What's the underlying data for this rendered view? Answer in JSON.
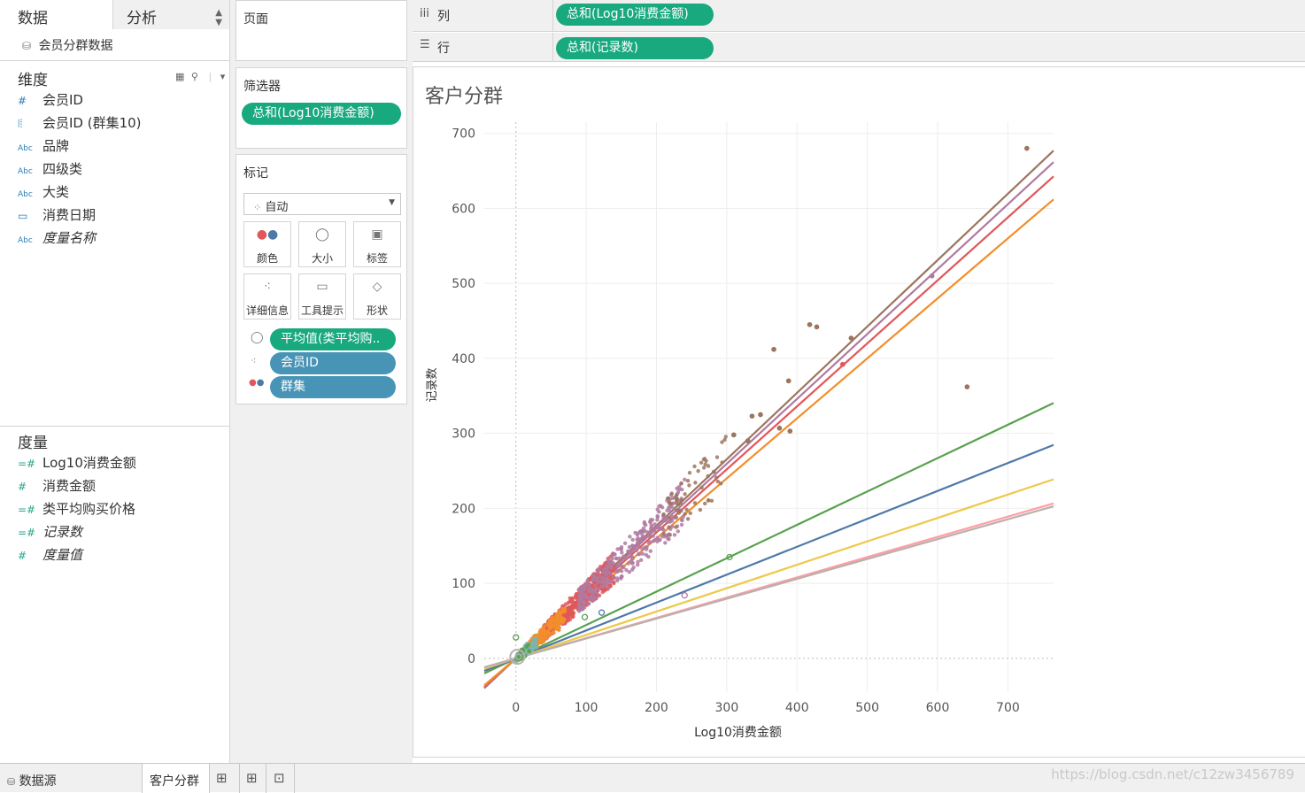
{
  "data_pane": {
    "tab_data": "数据",
    "tab_analytics": "分析",
    "datasource": "会员分群数据",
    "dimensions_title": "维度",
    "dimensions": [
      {
        "icon": "#",
        "label": "会员ID",
        "italic": false
      },
      {
        "icon": "⦚⦙",
        "label": "会员ID (群集10)",
        "italic": false
      },
      {
        "icon": "Abc",
        "label": "品牌",
        "italic": false
      },
      {
        "icon": "Abc",
        "label": "四级类",
        "italic": false
      },
      {
        "icon": "Abc",
        "label": "大类",
        "italic": false
      },
      {
        "icon": "▭",
        "label": "消费日期",
        "italic": false
      },
      {
        "icon": "Abc",
        "label": "度量名称",
        "italic": true
      }
    ],
    "measures_title": "度量",
    "measures": [
      {
        "icon": "=#",
        "label": "Log10消费金额",
        "italic": false
      },
      {
        "icon": "#",
        "label": "消费金额",
        "italic": false
      },
      {
        "icon": "=#",
        "label": "类平均购买价格",
        "italic": false
      },
      {
        "icon": "=#",
        "label": "记录数",
        "italic": true
      },
      {
        "icon": "#",
        "label": "度量值",
        "italic": true
      }
    ]
  },
  "shelves": {
    "pages_title": "页面",
    "filters_title": "筛选器",
    "filter_pill": "总和(Log10消费金额)",
    "columns_label": "列",
    "columns_pill": "总和(Log10消费金额)",
    "rows_label": "行",
    "rows_pill": "总和(记录数)"
  },
  "marks": {
    "title": "标记",
    "mark_type": "自动",
    "buttons": {
      "color": "颜色",
      "size": "大小",
      "label": "标签",
      "detail": "详细信息",
      "tooltip": "工具提示",
      "shape": "形状"
    },
    "pills": [
      {
        "label": "平均值(类平均购..",
        "kind": "size"
      },
      {
        "label": "会员ID",
        "kind": "detail"
      },
      {
        "label": "群集",
        "kind": "color"
      }
    ]
  },
  "sheet_title": "客户分群",
  "chart_data": {
    "type": "scatter",
    "title": "客户分群",
    "xlabel": "Log10消费金额",
    "ylabel": "记录数",
    "xlim": [
      -45,
      765
    ],
    "ylim": [
      -45,
      715
    ],
    "x_ticks": [
      0,
      100,
      200,
      300,
      400,
      500,
      600,
      700
    ],
    "y_ticks": [
      0,
      100,
      200,
      300,
      400,
      500,
      600,
      700
    ],
    "trend_lines": [
      {
        "color": "#9c755f",
        "slope": 0.885
      },
      {
        "color": "#b07aa1",
        "slope": 0.865
      },
      {
        "color": "#e15759",
        "slope": 0.84
      },
      {
        "color": "#f28e2b",
        "slope": 0.8
      },
      {
        "color": "#59a14f",
        "slope": 0.445
      },
      {
        "color": "#4e79a7",
        "slope": 0.372
      },
      {
        "color": "#edc948",
        "slope": 0.312
      },
      {
        "color": "#ff9da7",
        "slope": 0.27
      },
      {
        "color": "#bab0ac",
        "slope": 0.265
      }
    ],
    "clusters": [
      {
        "color": "#e15759",
        "x_range": [
          40,
          140
        ],
        "slope": 0.86,
        "count": 420
      },
      {
        "color": "#b07aa1",
        "x_range": [
          90,
          240
        ],
        "slope": 0.86,
        "count": 320
      },
      {
        "color": "#f28e2b",
        "x_range": [
          20,
          70
        ],
        "slope": 0.82,
        "count": 180
      },
      {
        "color": "#9c755f",
        "x_range": [
          210,
          300
        ],
        "slope": 0.88,
        "count": 60
      },
      {
        "color": "#76b7b2",
        "x_range": [
          0,
          30
        ],
        "slope": 0.8,
        "count": 60
      },
      {
        "color": "#59a14f",
        "x_range": [
          0,
          20
        ],
        "slope": 0.6,
        "count": 20
      }
    ],
    "outliers": [
      {
        "x": 727,
        "y": 680,
        "color": "#9c755f"
      },
      {
        "x": 642,
        "y": 362,
        "color": "#9c755f"
      },
      {
        "x": 592,
        "y": 510,
        "color": "#b07aa1"
      },
      {
        "x": 477,
        "y": 427,
        "color": "#9c755f"
      },
      {
        "x": 418,
        "y": 445,
        "color": "#9c755f"
      },
      {
        "x": 428,
        "y": 442,
        "color": "#9c755f"
      },
      {
        "x": 367,
        "y": 412,
        "color": "#9c755f"
      },
      {
        "x": 388,
        "y": 370,
        "color": "#9c755f"
      },
      {
        "x": 336,
        "y": 323,
        "color": "#9c755f"
      },
      {
        "x": 348,
        "y": 325,
        "color": "#9c755f"
      },
      {
        "x": 310,
        "y": 298,
        "color": "#9c755f"
      },
      {
        "x": 330,
        "y": 290,
        "color": "#9c755f"
      },
      {
        "x": 375,
        "y": 307,
        "color": "#9c755f"
      },
      {
        "x": 390,
        "y": 303,
        "color": "#9c755f"
      },
      {
        "x": 465,
        "y": 392,
        "color": "#e15759"
      },
      {
        "x": 240,
        "y": 84,
        "color": "#b07aa1"
      },
      {
        "x": 304,
        "y": 135,
        "color": "#59a14f"
      },
      {
        "x": 122,
        "y": 61,
        "color": "#4e79a7"
      },
      {
        "x": 98,
        "y": 55,
        "color": "#59a14f"
      },
      {
        "x": 0,
        "y": 28,
        "color": "#59a14f"
      },
      {
        "x": 4,
        "y": 2,
        "color": "#bab0ac"
      }
    ]
  },
  "bottom_bar": {
    "datasource_tab": "数据源",
    "sheet_tab": "客户分群"
  }
}
